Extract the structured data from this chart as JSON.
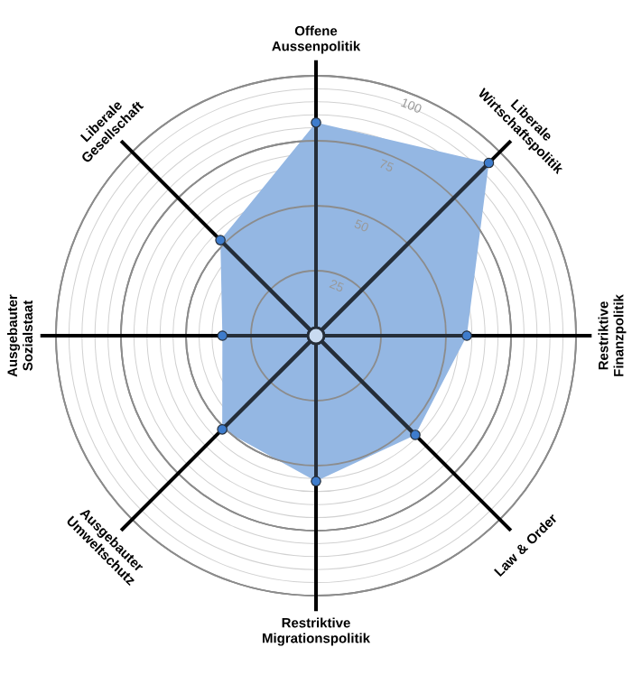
{
  "chart_data": {
    "type": "radar",
    "categories": [
      "Offene Aussenpolitik",
      "Liberale Wirtschaftspolitik",
      "Restriktive Finanzpolitik",
      "Law & Order",
      "Restriktive Migrationspolitik",
      "Ausgebauter Umweltschutz",
      "Ausgebauter Sozialstaat",
      "Liberale Gesellschaft"
    ],
    "series": [
      {
        "color": "#94b7e3",
        "values": [
          82,
          94,
          58,
          54,
          56,
          51,
          36,
          52
        ]
      }
    ],
    "ylim": [
      0,
      100
    ],
    "yticks": [
      25,
      50,
      75,
      100
    ],
    "grid": true,
    "marker": "circle"
  }
}
